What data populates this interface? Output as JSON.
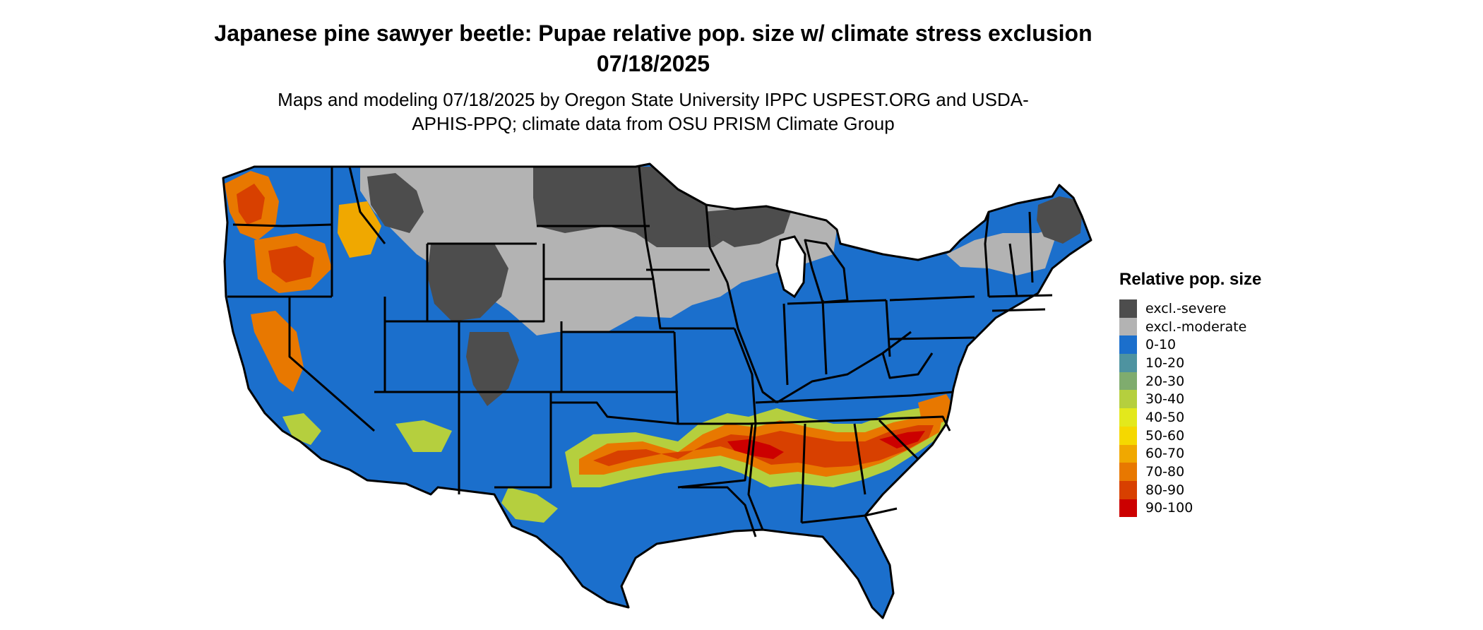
{
  "title": "Japanese pine sawyer beetle: Pupae relative pop. size w/ climate stress exclusion 07/18/2025",
  "subtitle": "Maps and modeling 07/18/2025 by Oregon State University IPPC USPEST.ORG and USDA-APHIS-PPQ; climate data from OSU PRISM Climate Group",
  "legend": {
    "title": "Relative pop. size",
    "items": [
      {
        "label": "excl.-severe",
        "color": "#4d4d4d"
      },
      {
        "label": "excl.-moderate",
        "color": "#b3b3b3"
      },
      {
        "label": "0-10",
        "color": "#1b6fcc"
      },
      {
        "label": "10-20",
        "color": "#4e93a0"
      },
      {
        "label": "20-30",
        "color": "#7fac6e"
      },
      {
        "label": "30-40",
        "color": "#b5cf3e"
      },
      {
        "label": "40-50",
        "color": "#e3e81c"
      },
      {
        "label": "50-60",
        "color": "#f5d800"
      },
      {
        "label": "60-70",
        "color": "#f0a800"
      },
      {
        "label": "70-80",
        "color": "#e87800"
      },
      {
        "label": "80-90",
        "color": "#d84000"
      },
      {
        "label": "90-100",
        "color": "#cc0000"
      }
    ]
  },
  "map": {
    "region": "contiguous United States",
    "border_color": "#000000"
  }
}
